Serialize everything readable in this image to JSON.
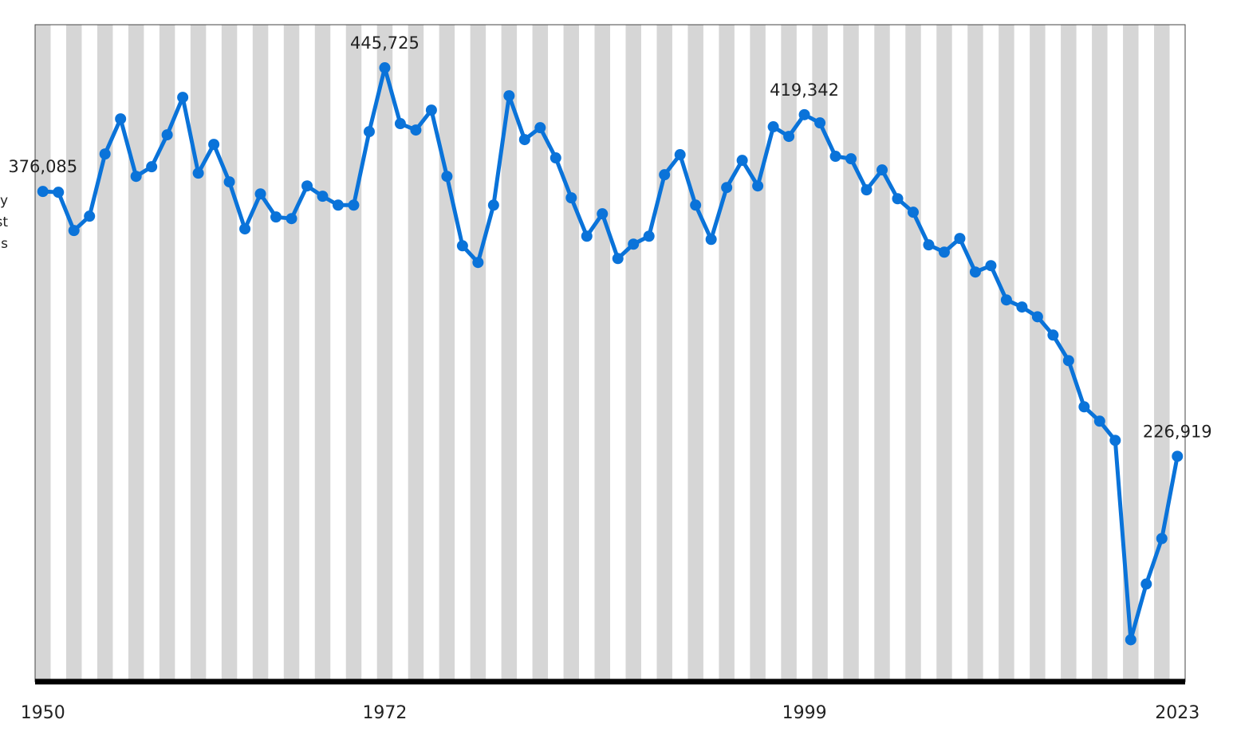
{
  "chart_data": {
    "type": "line",
    "ylabel_lines": [
      "y",
      "st",
      "s"
    ],
    "x": [
      1950,
      1951,
      1952,
      1953,
      1954,
      1955,
      1956,
      1957,
      1958,
      1959,
      1960,
      1961,
      1962,
      1963,
      1964,
      1965,
      1966,
      1967,
      1968,
      1969,
      1970,
      1971,
      1972,
      1973,
      1974,
      1975,
      1976,
      1977,
      1978,
      1979,
      1980,
      1981,
      1982,
      1983,
      1984,
      1985,
      1986,
      1987,
      1988,
      1989,
      1990,
      1991,
      1992,
      1993,
      1994,
      1995,
      1996,
      1997,
      1998,
      1999,
      2000,
      2001,
      2002,
      2003,
      2004,
      2005,
      2006,
      2007,
      2008,
      2009,
      2010,
      2011,
      2012,
      2013,
      2014,
      2015,
      2016,
      2017,
      2018,
      2019,
      2020,
      2021,
      2022,
      2023
    ],
    "series": [
      {
        "color": "#0a73d9",
        "values": [
          376085,
          375636,
          354070,
          362156,
          397200,
          416970,
          384600,
          390000,
          408000,
          429100,
          386400,
          402600,
          381500,
          355000,
          374700,
          361700,
          360800,
          379200,
          373400,
          368400,
          368400,
          409800,
          445725,
          414300,
          410700,
          421900,
          384600,
          345500,
          336100,
          368400,
          430000,
          405300,
          412000,
          395000,
          372500,
          350900,
          363500,
          338300,
          346400,
          350900,
          385500,
          396800,
          368400,
          349100,
          378300,
          393600,
          379200,
          412500,
          407100,
          419342,
          414700,
          395900,
          394500,
          377000,
          388200,
          372000,
          364400,
          346000,
          341900,
          349600,
          330700,
          334300,
          315000,
          311000,
          305500,
          295200,
          280800,
          254800,
          246700,
          235900,
          123600,
          155000,
          180600,
          226919
        ],
        "value_labels": [
          "376,085",
          null,
          null,
          null,
          null,
          null,
          null,
          null,
          null,
          null,
          null,
          null,
          null,
          null,
          null,
          null,
          null,
          null,
          null,
          null,
          null,
          null,
          "445,725",
          null,
          null,
          null,
          null,
          null,
          null,
          null,
          null,
          null,
          null,
          null,
          null,
          null,
          null,
          null,
          null,
          null,
          null,
          null,
          null,
          null,
          null,
          null,
          null,
          null,
          null,
          "419,342",
          null,
          null,
          null,
          null,
          null,
          null,
          null,
          null,
          null,
          null,
          null,
          null,
          null,
          null,
          null,
          null,
          null,
          null,
          null,
          null,
          null,
          null,
          null,
          "226,919"
        ]
      }
    ],
    "xticks": [
      1950,
      1972,
      1999,
      2023
    ],
    "ylim": [
      100000,
      470000
    ],
    "stripe_color": "#d6d6d6"
  }
}
